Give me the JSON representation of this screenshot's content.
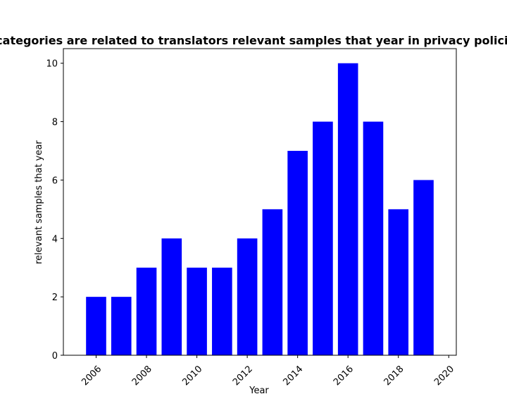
{
  "chart_data": {
    "type": "bar",
    "title": "categories are related to translators relevant samples that year in privacy policies",
    "xlabel": "Year",
    "ylabel": "relevant samples that year",
    "x": [
      2006,
      2007,
      2008,
      2009,
      2010,
      2011,
      2012,
      2013,
      2014,
      2015,
      2016,
      2017,
      2018,
      2019
    ],
    "values": [
      2,
      2,
      3,
      4,
      3,
      3,
      4,
      5,
      7,
      8,
      10,
      8,
      5,
      6
    ],
    "xlim": [
      2004.7,
      2020.3
    ],
    "ylim": [
      0,
      10.5
    ],
    "xticks": [
      "2006",
      "2008",
      "2010",
      "2012",
      "2014",
      "2016",
      "2018",
      "2020"
    ],
    "yticks": [
      "0",
      "2",
      "4",
      "6",
      "8",
      "10"
    ],
    "bar_color": "#0000ff",
    "grid": false,
    "legend": "none"
  }
}
